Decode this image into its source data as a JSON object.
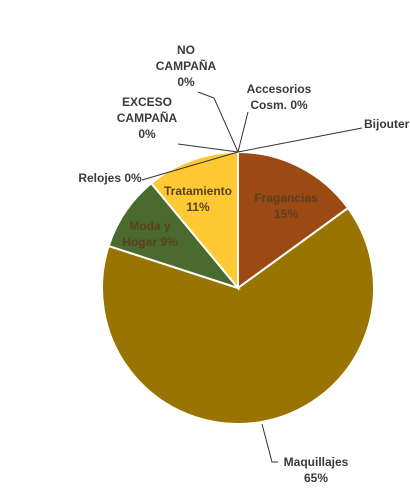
{
  "chart_data": {
    "type": "pie",
    "title": "",
    "slices": [
      {
        "label": "Fragancias",
        "percent_label": "15%",
        "value": 15,
        "color": "#9a4a12"
      },
      {
        "label": "Maquillajes",
        "percent_label": "65%",
        "value": 65,
        "color": "#9a7400"
      },
      {
        "label": "Moda y Hogar",
        "percent_label": "9%",
        "value": 9,
        "color": "#4a6a2e"
      },
      {
        "label": "Relojes",
        "percent_label": "0%",
        "value": 0,
        "color": "#6a8a3a"
      },
      {
        "label": "Tratamiento",
        "percent_label": "11%",
        "value": 11,
        "color": "#ffc933"
      },
      {
        "label": "EXCESO CAMPAÑA",
        "percent_label": "0%",
        "value": 0,
        "color": "#c8a040"
      },
      {
        "label": "NO CAMPAÑA",
        "percent_label": "0%",
        "value": 0,
        "color": "#b08030"
      },
      {
        "label": "Accesorios Cosm.",
        "percent_label": "0%",
        "value": 0,
        "color": "#7a5a20"
      },
      {
        "label": "Bijouteri",
        "percent_label": "",
        "value": 0,
        "color": "#8a6a30"
      }
    ],
    "label_text": {
      "fragancias": [
        "Fragancias",
        "15%"
      ],
      "maquillajes": [
        "Maquillajes",
        "65%"
      ],
      "moda": [
        "Moda y",
        "Hogar 9%"
      ],
      "relojes": [
        "Relojes 0%"
      ],
      "tratamiento": [
        "Tratamiento",
        "11%"
      ],
      "exceso": [
        "EXCESO",
        "CAMPAÑA",
        "0%"
      ],
      "nocampana": [
        "NO",
        "CAMPAÑA",
        "0%"
      ],
      "accesorios": [
        "Accesorios",
        "Cosm. 0%"
      ],
      "bijouteri": [
        "Bijouteri"
      ]
    }
  }
}
